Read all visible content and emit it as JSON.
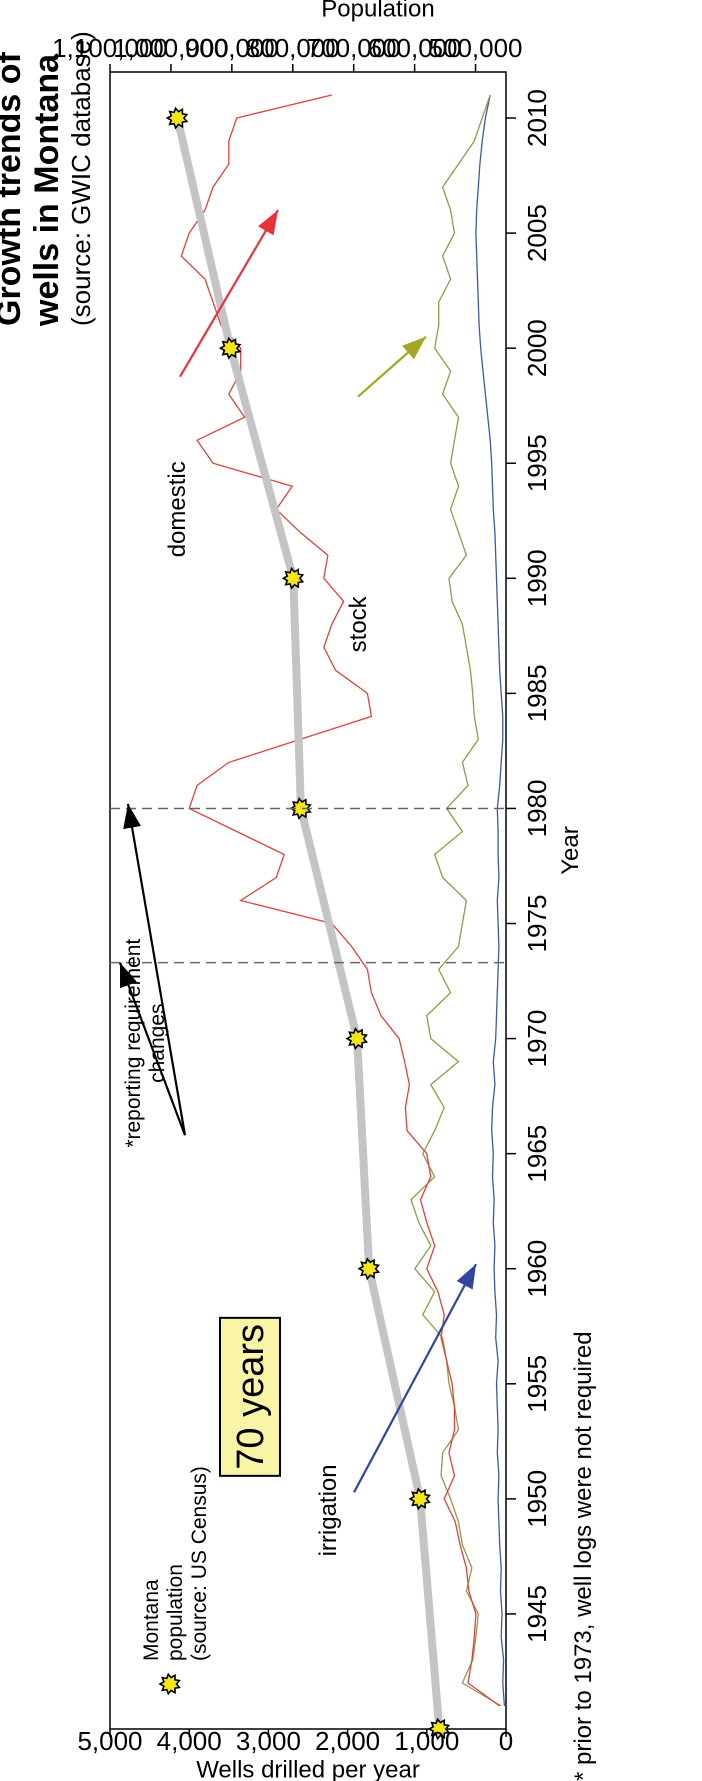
{
  "title": {
    "line1": "Growth trends of",
    "line2": "wells in Montana",
    "source": "(source: GWIC database)"
  },
  "colors": {
    "domestic": "#e0413c",
    "stock": "#8f9a4a",
    "irrigation": "#3a5aa8",
    "population": "#c4c4c4",
    "marker_fill": "#f5e51b",
    "box_fill": "#faf5a6",
    "reporting_line": "#666666",
    "arrow_domestic": "#e8323c",
    "arrow_stock": "#a6a624",
    "arrow_irrigation": "#2e46a0",
    "arrow_reporting": "#000000"
  },
  "labels": {
    "domestic": "domestic",
    "stock": "stock",
    "irrigation": "irrigation",
    "reporting_note": [
      "*reporting requirement",
      "changes"
    ],
    "legend_population": [
      "Montana",
      "population",
      "(source: US Census)"
    ],
    "years_box": "70 years",
    "footnote": "* prior to 1973, well logs were not required"
  },
  "chart_data": {
    "type": "line",
    "xlabel": "Year",
    "ylabel": "Wells drilled per year",
    "y2label": "Population",
    "xlim": [
      1940,
      2012
    ],
    "ylim": [
      0,
      5000
    ],
    "y2lim": [
      450000,
      1100000
    ],
    "x_ticks": [
      1945,
      1950,
      1955,
      1960,
      1965,
      1970,
      1975,
      1980,
      1985,
      1990,
      1995,
      2000,
      2005,
      2010
    ],
    "y_ticks": [
      0,
      1000,
      2000,
      3000,
      4000,
      5000
    ],
    "y_tick_labels": [
      "0",
      "1,000",
      "2,000",
      "3,000",
      "4,000",
      "5,000"
    ],
    "y2_ticks": [
      500000,
      600000,
      700000,
      800000,
      900000,
      1000000,
      1100000
    ],
    "y2_tick_labels": [
      "500,000",
      "600,000",
      "700,000",
      "800,000",
      "900,000",
      "1,000,000",
      "1,100,000"
    ],
    "reporting_change_years": [
      1973.3,
      1980
    ],
    "x": [
      1941,
      1942,
      1943,
      1944,
      1945,
      1946,
      1947,
      1948,
      1949,
      1950,
      1951,
      1952,
      1953,
      1954,
      1955,
      1956,
      1957,
      1958,
      1959,
      1960,
      1961,
      1962,
      1963,
      1964,
      1965,
      1966,
      1967,
      1968,
      1969,
      1970,
      1971,
      1972,
      1973,
      1974,
      1975,
      1976,
      1977,
      1978,
      1979,
      1980,
      1981,
      1982,
      1983,
      1984,
      1985,
      1986,
      1987,
      1988,
      1989,
      1990,
      1991,
      1992,
      1993,
      1994,
      1995,
      1996,
      1997,
      1998,
      1999,
      2000,
      2001,
      2002,
      2003,
      2004,
      2005,
      2006,
      2007,
      2008,
      2009,
      2010,
      2011
    ],
    "series": [
      {
        "name": "domestic",
        "values": [
          80,
          480,
          430,
          400,
          380,
          470,
          500,
          580,
          640,
          780,
          650,
          720,
          650,
          650,
          680,
          750,
          820,
          780,
          860,
          1000,
          900,
          1000,
          1080,
          950,
          1000,
          1250,
          1270,
          1220,
          1280,
          1350,
          1580,
          1700,
          1750,
          1950,
          2200,
          3350,
          2900,
          2800,
          3400,
          4000,
          3900,
          3500,
          2600,
          1700,
          1750,
          2150,
          2300,
          2200,
          2050,
          2300,
          2250,
          2600,
          2900,
          2700,
          3700,
          3900,
          3300,
          3500,
          3350,
          3350,
          3600,
          3700,
          3800,
          4100,
          4000,
          3800,
          3700,
          3500,
          3500,
          3400,
          2200
        ]
      },
      {
        "name": "stock",
        "values": [
          60,
          550,
          420,
          380,
          350,
          500,
          430,
          550,
          600,
          700,
          820,
          800,
          600,
          650,
          720,
          750,
          800,
          1050,
          900,
          1150,
          950,
          1100,
          1200,
          900,
          1050,
          900,
          780,
          950,
          600,
          950,
          1000,
          700,
          850,
          600,
          550,
          500,
          800,
          900,
          550,
          750,
          480,
          550,
          350,
          400,
          420,
          450,
          500,
          550,
          680,
          720,
          500,
          600,
          700,
          600,
          700,
          650,
          600,
          800,
          700,
          900,
          850,
          850,
          700,
          800,
          650,
          700,
          800,
          600,
          400,
          300,
          200
        ]
      },
      {
        "name": "irrigation",
        "values": [
          20,
          40,
          30,
          60,
          50,
          70,
          60,
          80,
          90,
          100,
          90,
          110,
          100,
          110,
          120,
          100,
          130,
          120,
          140,
          150,
          140,
          160,
          150,
          170,
          160,
          180,
          170,
          140,
          160,
          130,
          120,
          110,
          100,
          90,
          100,
          110,
          90,
          100,
          100,
          110,
          80,
          60,
          40,
          40,
          60,
          80,
          90,
          100,
          110,
          120,
          130,
          140,
          160,
          170,
          180,
          200,
          230,
          260,
          290,
          320,
          340,
          350,
          360,
          370,
          380,
          370,
          350,
          330,
          300,
          260,
          200
        ]
      }
    ],
    "population": {
      "name": "Montana population",
      "x": [
        1940,
        1950,
        1960,
        1970,
        1980,
        1990,
        2000,
        2010
      ],
      "values": [
        559456,
        591024,
        674767,
        694409,
        786690,
        799065,
        902195,
        989415
      ]
    }
  }
}
